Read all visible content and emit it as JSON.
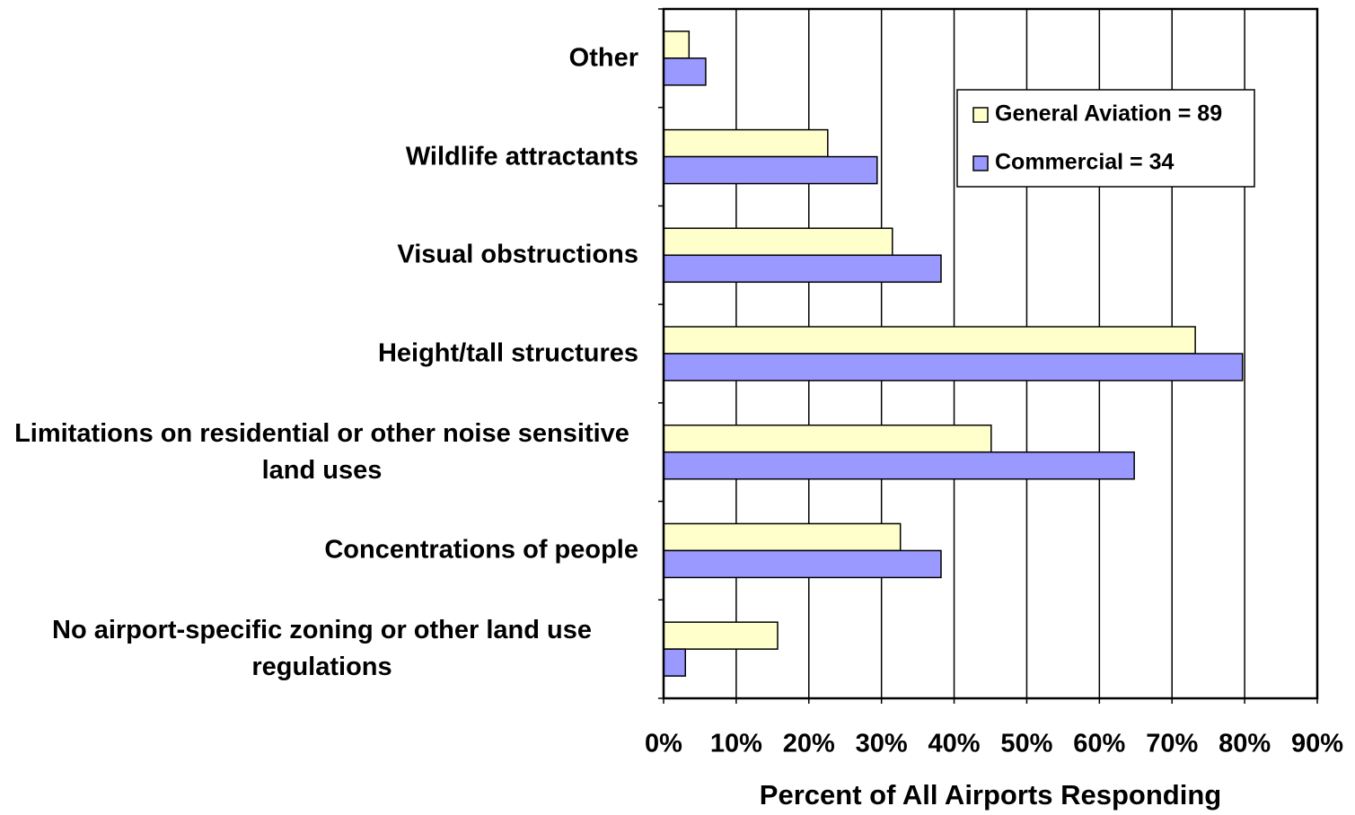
{
  "chart_data": {
    "type": "bar",
    "orientation": "horizontal",
    "x_label": "Percent of All Airports Responding",
    "categories": [
      "Other",
      "Wildlife attractants",
      "Visual obstructions",
      "Height/tall structures",
      "Limitations on residential or other noise sensitive land uses",
      "Concentrations of people",
      "No airport-specific zoning or other land use regulations"
    ],
    "series": [
      {
        "name": "General Aviation = 89",
        "color": "#ffffcc",
        "values": [
          3.5,
          22.6,
          31.5,
          73.2,
          45.1,
          32.6,
          15.7
        ]
      },
      {
        "name": "Commercial = 34",
        "color": "#9999ff",
        "values": [
          5.8,
          29.4,
          38.2,
          79.7,
          64.8,
          38.2,
          3.0
        ]
      }
    ],
    "xlim": [
      0,
      90
    ],
    "xticks": [
      {
        "value": 0,
        "label": "0%"
      },
      {
        "value": 10,
        "label": "10%"
      },
      {
        "value": 20,
        "label": "20%"
      },
      {
        "value": 30,
        "label": "30%"
      },
      {
        "value": 40,
        "label": "40%"
      },
      {
        "value": 50,
        "label": "50%"
      },
      {
        "value": 60,
        "label": "60%"
      },
      {
        "value": 70,
        "label": "70%"
      },
      {
        "value": 80,
        "label": "80%"
      },
      {
        "value": 90,
        "label": "90%"
      }
    ],
    "grid": true,
    "legend": "upper right"
  }
}
